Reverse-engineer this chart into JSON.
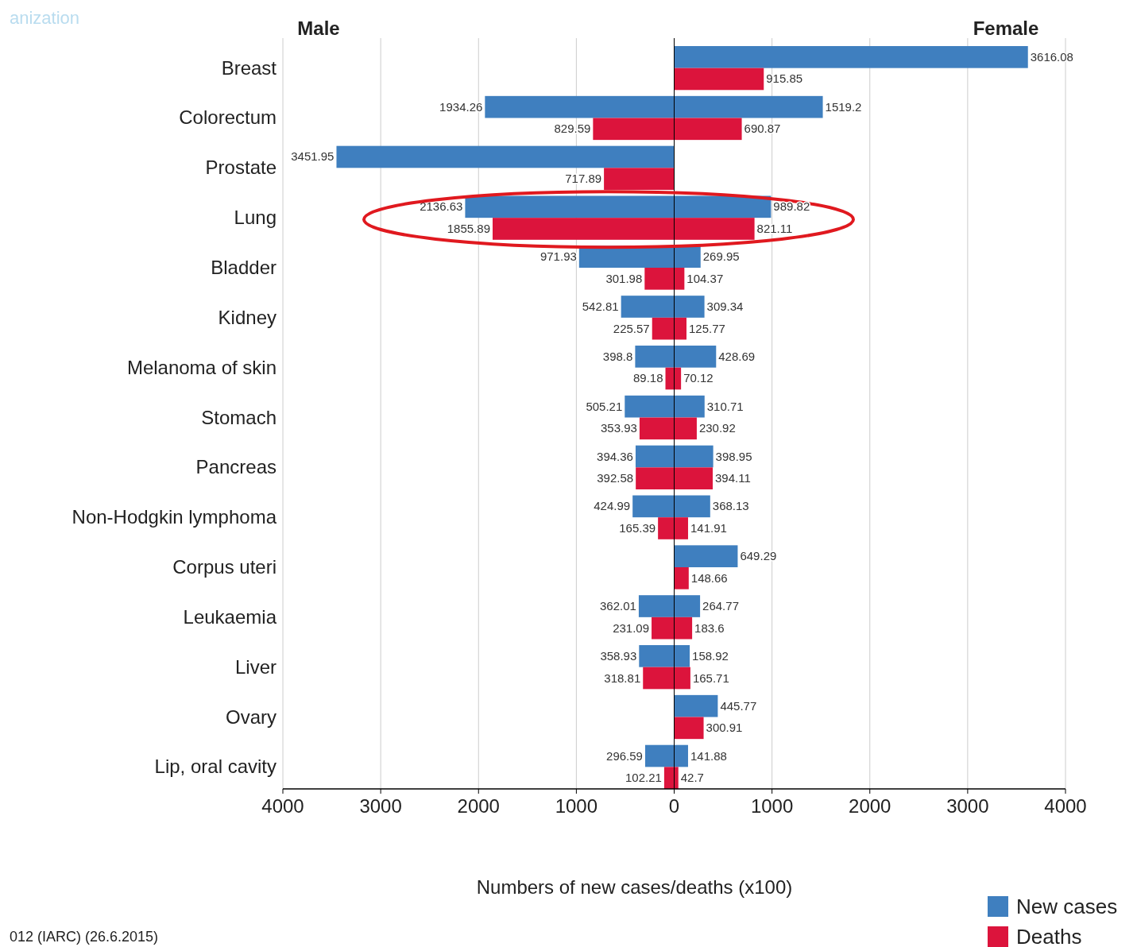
{
  "chart_data": [
    {
      "type": "bar",
      "orientation": "horizontal",
      "title": "Male",
      "xlabel": "Numbers of new cases/deaths (x100)",
      "categories": [
        "Breast",
        "Colorectum",
        "Prostate",
        "Lung",
        "Bladder",
        "Kidney",
        "Melanoma of skin",
        "Stomach",
        "Pancreas",
        "Non-Hodgkin lymphoma",
        "Corpus uteri",
        "Leukaemia",
        "Liver",
        "Ovary",
        "Lip, oral cavity"
      ],
      "series": [
        {
          "color": "#3f7fbf",
          "values": [
            null,
            1934.26,
            3451.95,
            2136.63,
            971.93,
            542.81,
            398.8,
            505.21,
            394.36,
            424.99,
            null,
            362.01,
            358.93,
            null,
            296.59
          ]
        },
        {
          "color": "#dc143c",
          "values": [
            null,
            829.59,
            717.89,
            1855.89,
            301.98,
            225.57,
            89.18,
            353.93,
            392.58,
            165.39,
            null,
            231.09,
            318.81,
            null,
            102.21
          ]
        }
      ],
      "xlim": [
        4000,
        0
      ],
      "xticks": [
        4000,
        3000,
        2000,
        1000,
        0
      ],
      "grid": "x",
      "data_labels": true,
      "annotations": [
        "anization",
        "012 (IARC) (26.6.2015)"
      ]
    },
    {
      "type": "bar",
      "orientation": "horizontal",
      "title": "Female",
      "series": [
        {
          "name": "New cases",
          "color": "#3f7fbf",
          "values": [
            3616.08,
            1519.2,
            null,
            989.82,
            269.95,
            309.34,
            428.69,
            310.71,
            398.95,
            368.13,
            649.29,
            264.77,
            158.92,
            445.77,
            141.88
          ]
        },
        {
          "name": "Deaths",
          "color": "#dc143c",
          "values": [
            915.85,
            690.87,
            null,
            821.11,
            104.37,
            125.77,
            70.12,
            230.92,
            394.11,
            141.91,
            148.66,
            183.6,
            165.71,
            300.91,
            42.7
          ]
        }
      ],
      "xlim": [
        0,
        4000
      ],
      "xticks": [
        {
          "value": 0,
          "label": null
        },
        1000,
        2000,
        3000,
        4000
      ],
      "grid": "x",
      "data_labels": true,
      "tick_labels": "x",
      "legend": "bottom right"
    }
  ]
}
